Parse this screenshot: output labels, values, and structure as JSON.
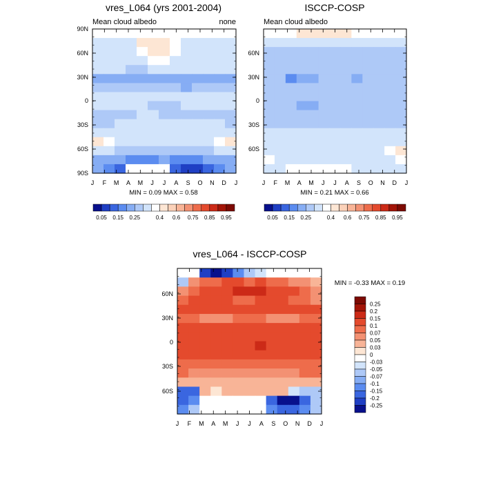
{
  "palette": {
    "blue": [
      "#08108c",
      "#1f3fc4",
      "#3a66e0",
      "#5b8cf0",
      "#86adf4",
      "#aec9f7",
      "#d2e4fb"
    ],
    "white": "#ffffff",
    "warm": [
      "#fde6d4",
      "#fbd1b9",
      "#f8b497",
      "#f39173",
      "#ee6c4b",
      "#e44a2d",
      "#cc2a17",
      "#a31407",
      "#7d0a03"
    ]
  },
  "panels": [
    {
      "name": "model-panel",
      "title": "vres_L064 (yrs 2001-2004)",
      "subtitle_left": "Mean cloud albedo",
      "subtitle_right": "none",
      "stats": "MIN =   0.09 MAX =   0.58"
    },
    {
      "name": "obs-panel",
      "title": "ISCCP-COSP",
      "subtitle_left": "Mean cloud albedo",
      "subtitle_right": "",
      "stats": "MIN =   0.21 MAX =   0.66"
    },
    {
      "name": "diff-panel",
      "title": "vres_L064 - ISCCP-COSP",
      "subtitle_left": "",
      "subtitle_right": "",
      "stats": "MIN =  -0.33 MAX =   0.19"
    }
  ],
  "chart_data": [
    {
      "type": "heatmap",
      "title": "vres_L064 (yrs 2001-2004)",
      "subtitle": "Mean cloud albedo",
      "x_ticks": [
        "J",
        "F",
        "M",
        "A",
        "M",
        "J",
        "J",
        "A",
        "S",
        "O",
        "N",
        "D",
        "J"
      ],
      "y_ticks": [
        "90N",
        "60N",
        "30N",
        "0",
        "30S",
        "60S",
        "90S"
      ],
      "ylim": [
        -90,
        90
      ],
      "grid": [
        [
          null,
          null,
          null,
          null,
          null,
          null,
          null,
          null,
          null,
          null,
          null,
          null,
          null
        ],
        [
          0.35,
          0.35,
          0.35,
          0.35,
          0.45,
          0.5,
          0.45,
          0.4,
          0.35,
          0.35,
          0.35,
          0.35,
          0.35
        ],
        [
          0.35,
          0.35,
          0.35,
          0.35,
          0.4,
          0.45,
          0.45,
          0.4,
          0.35,
          0.35,
          0.35,
          0.35,
          0.35
        ],
        [
          0.35,
          0.35,
          0.35,
          0.35,
          0.35,
          0.4,
          0.4,
          0.35,
          0.35,
          0.35,
          0.35,
          0.35,
          0.35
        ],
        [
          0.35,
          0.35,
          0.35,
          0.3,
          0.3,
          0.35,
          0.35,
          0.35,
          0.35,
          0.35,
          0.35,
          0.35,
          0.35
        ],
        [
          0.25,
          0.25,
          0.25,
          0.25,
          0.25,
          0.25,
          0.25,
          0.25,
          0.25,
          0.25,
          0.25,
          0.25,
          0.25
        ],
        [
          0.3,
          0.3,
          0.3,
          0.3,
          0.3,
          0.3,
          0.3,
          0.3,
          0.25,
          0.3,
          0.3,
          0.3,
          0.3
        ],
        [
          0.35,
          0.35,
          0.35,
          0.35,
          0.35,
          0.35,
          0.35,
          0.35,
          0.35,
          0.35,
          0.35,
          0.35,
          0.35
        ],
        [
          0.35,
          0.35,
          0.35,
          0.35,
          0.35,
          0.3,
          0.3,
          0.3,
          0.35,
          0.35,
          0.35,
          0.35,
          0.35
        ],
        [
          0.3,
          0.3,
          0.3,
          0.3,
          0.35,
          0.35,
          0.3,
          0.3,
          0.3,
          0.3,
          0.3,
          0.3,
          0.3
        ],
        [
          0.3,
          0.3,
          0.35,
          0.35,
          0.35,
          0.35,
          0.35,
          0.35,
          0.35,
          0.35,
          0.35,
          0.35,
          0.3
        ],
        [
          0.35,
          0.35,
          0.35,
          0.35,
          0.35,
          0.35,
          0.35,
          0.35,
          0.35,
          0.35,
          0.35,
          0.35,
          0.35
        ],
        [
          0.45,
          0.4,
          0.35,
          0.35,
          0.35,
          0.35,
          0.35,
          0.35,
          0.35,
          0.35,
          0.35,
          0.4,
          0.45
        ],
        [
          0.35,
          0.35,
          0.3,
          0.3,
          0.3,
          0.3,
          0.3,
          0.3,
          0.3,
          0.3,
          0.3,
          0.35,
          0.35
        ],
        [
          0.25,
          0.25,
          0.25,
          0.2,
          0.2,
          0.2,
          0.25,
          0.2,
          0.2,
          0.2,
          0.25,
          0.25,
          0.25
        ],
        [
          0.25,
          0.2,
          0.15,
          null,
          null,
          null,
          null,
          0.15,
          0.1,
          0.1,
          0.15,
          0.2,
          0.25
        ]
      ]
    },
    {
      "type": "heatmap",
      "title": "ISCCP-COSP",
      "subtitle": "Mean cloud albedo",
      "x_ticks": [
        "J",
        "F",
        "M",
        "A",
        "M",
        "J",
        "J",
        "A",
        "S",
        "O",
        "N",
        "D",
        "J"
      ],
      "y_ticks": [
        "60N",
        "30N",
        "0",
        "30S",
        "60S"
      ],
      "ylim": [
        -90,
        90
      ],
      "grid": [
        [
          null,
          null,
          null,
          0.45,
          0.5,
          0.5,
          0.45,
          0.45,
          0.4,
          null,
          null,
          null,
          null
        ],
        [
          0.35,
          0.35,
          0.35,
          0.35,
          0.35,
          0.35,
          0.35,
          0.35,
          0.35,
          0.35,
          0.35,
          0.35,
          0.35
        ],
        [
          0.3,
          0.3,
          0.3,
          0.3,
          0.3,
          0.3,
          0.3,
          0.3,
          0.3,
          0.3,
          0.3,
          0.3,
          0.3
        ],
        [
          0.3,
          0.3,
          0.3,
          0.3,
          0.3,
          0.3,
          0.3,
          0.3,
          0.3,
          0.3,
          0.3,
          0.3,
          0.3
        ],
        [
          0.3,
          0.3,
          0.3,
          0.3,
          0.3,
          0.3,
          0.3,
          0.3,
          0.3,
          0.3,
          0.3,
          0.3,
          0.3
        ],
        [
          0.3,
          0.3,
          0.2,
          0.25,
          0.25,
          0.3,
          0.3,
          0.3,
          0.25,
          0.3,
          0.3,
          0.3,
          0.3
        ],
        [
          0.3,
          0.3,
          0.3,
          0.3,
          0.3,
          0.3,
          0.3,
          0.3,
          0.3,
          0.3,
          0.3,
          0.3,
          0.3
        ],
        [
          0.3,
          0.3,
          0.3,
          0.3,
          0.3,
          0.3,
          0.3,
          0.3,
          0.3,
          0.3,
          0.3,
          0.3,
          0.3
        ],
        [
          0.3,
          0.3,
          0.3,
          0.25,
          0.25,
          0.3,
          0.3,
          0.3,
          0.3,
          0.3,
          0.3,
          0.3,
          0.3
        ],
        [
          0.3,
          0.3,
          0.3,
          0.3,
          0.3,
          0.3,
          0.3,
          0.3,
          0.3,
          0.3,
          0.3,
          0.3,
          0.3
        ],
        [
          0.3,
          0.3,
          0.3,
          0.3,
          0.3,
          0.3,
          0.3,
          0.3,
          0.3,
          0.3,
          0.3,
          0.3,
          0.3
        ],
        [
          0.35,
          0.35,
          0.35,
          0.35,
          0.35,
          0.35,
          0.35,
          0.35,
          0.35,
          0.35,
          0.35,
          0.35,
          0.35
        ],
        [
          0.35,
          0.35,
          0.35,
          0.35,
          0.35,
          0.35,
          0.35,
          0.35,
          0.35,
          0.35,
          0.35,
          0.35,
          0.35
        ],
        [
          0.35,
          0.35,
          0.35,
          0.35,
          0.35,
          0.35,
          0.35,
          0.35,
          0.35,
          0.35,
          0.35,
          0.4,
          0.45
        ],
        [
          0.4,
          0.35,
          0.35,
          0.35,
          0.35,
          0.35,
          0.35,
          0.35,
          0.35,
          0.35,
          0.35,
          0.35,
          0.4
        ],
        [
          0.35,
          0.35,
          null,
          null,
          null,
          null,
          null,
          null,
          0.35,
          0.35,
          0.35,
          0.35,
          0.35
        ]
      ]
    },
    {
      "type": "heatmap",
      "title": "vres_L064 - ISCCP-COSP",
      "x_ticks": [
        "J",
        "F",
        "M",
        "A",
        "M",
        "J",
        "J",
        "A",
        "S",
        "O",
        "N",
        "D",
        "J"
      ],
      "y_ticks": [
        "60N",
        "30N",
        "0",
        "30S",
        "60S"
      ],
      "ylim": [
        -90,
        90
      ],
      "grid": [
        [
          null,
          null,
          -0.2,
          -0.25,
          -0.2,
          -0.1,
          -0.05,
          -0.03,
          null,
          null,
          null,
          null,
          null
        ],
        [
          -0.05,
          0.05,
          0.07,
          0.07,
          0.1,
          0.1,
          0.07,
          0.1,
          0.07,
          0.07,
          0.05,
          0.05,
          0.03
        ],
        [
          0.05,
          0.07,
          0.1,
          0.1,
          0.1,
          0.15,
          0.15,
          0.15,
          0.1,
          0.1,
          0.1,
          0.07,
          0.05
        ],
        [
          0.07,
          0.1,
          0.1,
          0.1,
          0.1,
          0.07,
          0.07,
          0.1,
          0.1,
          0.1,
          0.07,
          0.07,
          0.05
        ],
        [
          0.1,
          0.1,
          0.1,
          0.1,
          0.1,
          0.1,
          0.1,
          0.1,
          0.1,
          0.1,
          0.1,
          0.1,
          0.1
        ],
        [
          0.07,
          0.07,
          0.05,
          0.05,
          0.05,
          0.07,
          0.07,
          0.07,
          0.05,
          0.05,
          0.05,
          0.07,
          0.07
        ],
        [
          0.1,
          0.1,
          0.1,
          0.1,
          0.1,
          0.1,
          0.1,
          0.1,
          0.1,
          0.1,
          0.1,
          0.1,
          0.1
        ],
        [
          0.1,
          0.1,
          0.1,
          0.1,
          0.1,
          0.1,
          0.1,
          0.1,
          0.1,
          0.1,
          0.1,
          0.1,
          0.1
        ],
        [
          0.1,
          0.1,
          0.1,
          0.1,
          0.1,
          0.1,
          0.1,
          0.15,
          0.1,
          0.1,
          0.1,
          0.1,
          0.1
        ],
        [
          0.1,
          0.1,
          0.1,
          0.1,
          0.1,
          0.1,
          0.1,
          0.1,
          0.1,
          0.1,
          0.1,
          0.1,
          0.1
        ],
        [
          0.07,
          0.07,
          0.07,
          0.07,
          0.07,
          0.07,
          0.07,
          0.07,
          0.07,
          0.07,
          0.07,
          0.07,
          0.07
        ],
        [
          0.07,
          0.05,
          0.05,
          0.05,
          0.05,
          0.05,
          0.05,
          0.05,
          0.05,
          0.05,
          0.05,
          0.07,
          0.07
        ],
        [
          0.03,
          0.03,
          0.03,
          0.03,
          0.03,
          0.03,
          0.03,
          0.03,
          0.03,
          0.03,
          0.03,
          0.03,
          0.03
        ],
        [
          -0.15,
          -0.15,
          0.03,
          0,
          0.03,
          0.03,
          0.03,
          0.03,
          0.03,
          0.03,
          -0.03,
          -0.05,
          -0.05
        ],
        [
          -0.15,
          -0.1,
          null,
          null,
          null,
          null,
          null,
          null,
          -0.15,
          -0.25,
          -0.3,
          -0.15,
          -0.05
        ],
        [
          -0.1,
          -0.05,
          null,
          null,
          null,
          null,
          null,
          null,
          -0.1,
          -0.15,
          -0.15,
          -0.1,
          -0.05
        ]
      ]
    }
  ],
  "colorbar_abs": {
    "labels": [
      "0.05",
      "0.15",
      "0.25",
      "0.4",
      "0.6",
      "0.75",
      "0.85",
      "0.95"
    ],
    "levels": [
      0.05,
      0.1,
      0.15,
      0.2,
      0.25,
      0.3,
      0.35,
      0.4,
      0.5,
      0.6,
      0.65,
      0.7,
      0.75,
      0.8,
      0.85,
      0.9,
      0.95
    ]
  },
  "colorbar_diff": {
    "labels": [
      "0.25",
      "0.2",
      "0.15",
      "0.1",
      "0.07",
      "0.05",
      "0.03",
      "0",
      "-0.03",
      "-0.05",
      "-0.07",
      "-0.1",
      "-0.15",
      "-0.2",
      "-0.25"
    ]
  }
}
